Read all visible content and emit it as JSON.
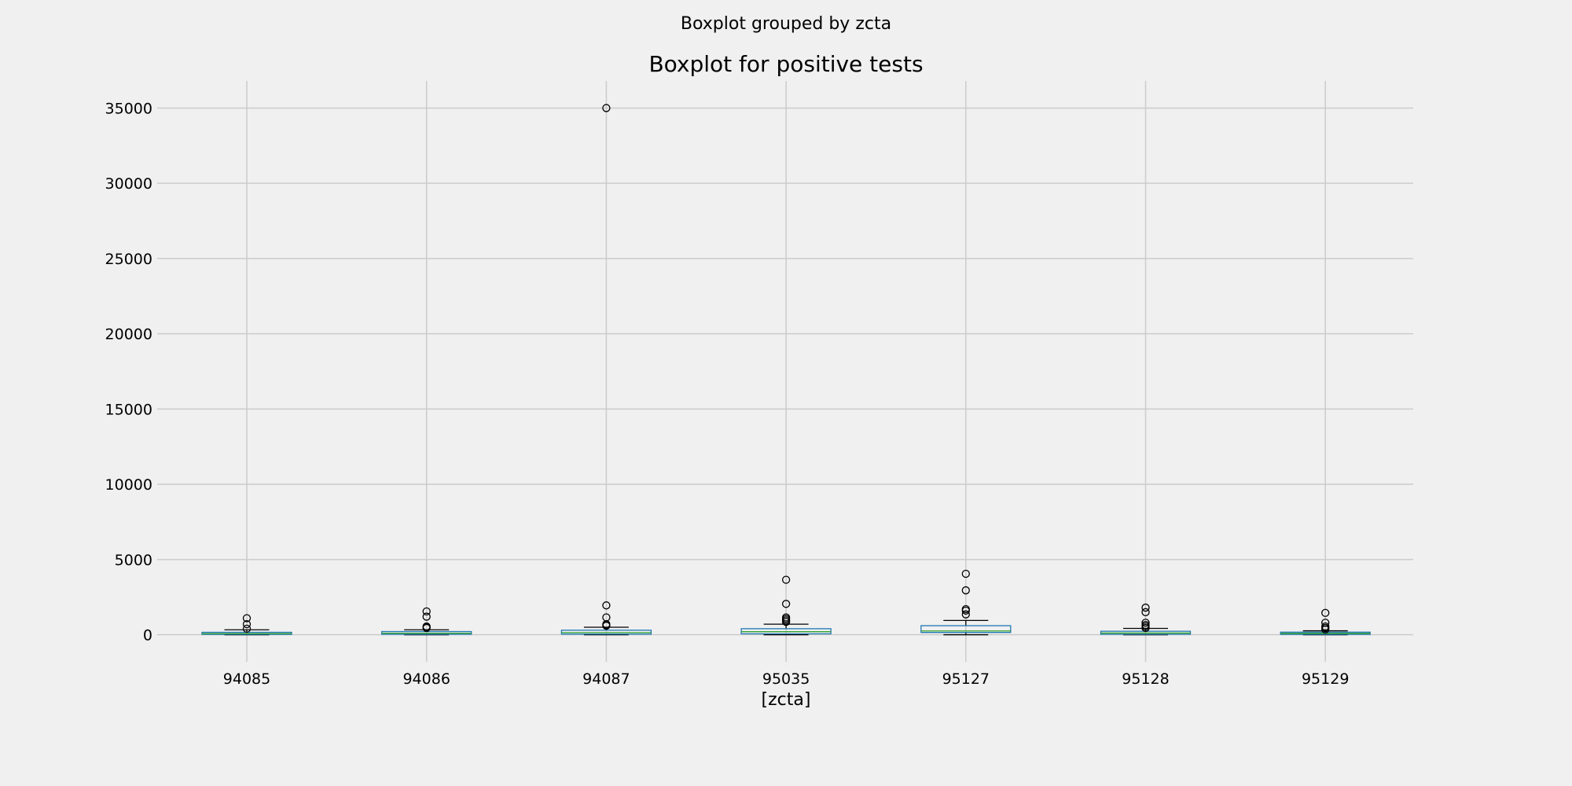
{
  "chart_data": {
    "type": "box",
    "suptitle": "Boxplot grouped by zcta",
    "title": "Boxplot for positive tests",
    "xlabel": "[zcta]",
    "ylabel": "",
    "ylim": [
      -1800,
      36800
    ],
    "yticks": [
      0,
      5000,
      10000,
      15000,
      20000,
      25000,
      30000,
      35000
    ],
    "grid": true,
    "categories": [
      "94085",
      "94086",
      "94087",
      "95035",
      "95127",
      "95128",
      "95129"
    ],
    "boxes": [
      {
        "category": "94085",
        "whisker_low": 0,
        "q1": 25,
        "median": 75,
        "q3": 160,
        "whisker_high": 330,
        "outliers": [
          400,
          700,
          1100
        ]
      },
      {
        "category": "94086",
        "whisker_low": 0,
        "q1": 30,
        "median": 100,
        "q3": 210,
        "whisker_high": 330,
        "outliers": [
          450,
          500,
          550,
          1200,
          1550
        ]
      },
      {
        "category": "94087",
        "whisker_low": 0,
        "q1": 40,
        "median": 140,
        "q3": 300,
        "whisker_high": 500,
        "outliers": [
          600,
          650,
          700,
          1150,
          1950,
          35000
        ]
      },
      {
        "category": "95035",
        "whisker_low": 0,
        "q1": 60,
        "median": 200,
        "q3": 400,
        "whisker_high": 700,
        "outliers": [
          850,
          950,
          1050,
          1150,
          2050,
          3650
        ]
      },
      {
        "category": "95127",
        "whisker_low": 0,
        "q1": 150,
        "median": 250,
        "q3": 600,
        "whisker_high": 950,
        "outliers": [
          1350,
          1600,
          1700,
          2950,
          4050
        ]
      },
      {
        "category": "95128",
        "whisker_low": 0,
        "q1": 30,
        "median": 110,
        "q3": 230,
        "whisker_high": 420,
        "outliers": [
          450,
          550,
          650,
          800,
          1500,
          1800
        ]
      },
      {
        "category": "95129",
        "whisker_low": 0,
        "q1": 25,
        "median": 90,
        "q3": 170,
        "whisker_high": 260,
        "outliers": [
          350,
          450,
          550,
          800,
          1450
        ]
      }
    ],
    "colors": {
      "background": "#f0f0f0",
      "grid": "#cbcbcb",
      "box": "#1f77b4",
      "median": "#2ca02c",
      "whisker": "#000000",
      "outlier": "#000000"
    }
  }
}
